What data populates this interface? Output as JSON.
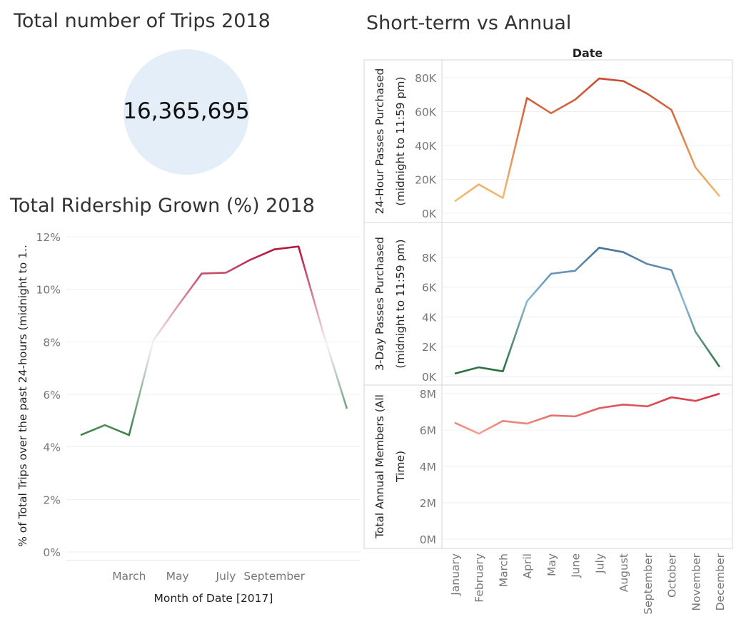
{
  "kpi": {
    "title": "Total number of Trips 2018",
    "value": "16,365,695",
    "circle_color": "#e3eef8"
  },
  "growth": {
    "title": "Total Ridership Grown (%) 2018"
  },
  "short_term": {
    "title": "Short-term vs Annual"
  },
  "chart_data": [
    {
      "type": "line",
      "title": "Total Ridership Grown (%) 2018",
      "xlabel": "Month of Date [2017]",
      "ylabel": "% of Total Trips over the past 24-hours (midnight to 1..",
      "x_tick_labels": [
        "March",
        "May",
        "July",
        "September"
      ],
      "x": [
        1,
        2,
        3,
        4,
        5,
        6,
        7,
        8,
        9,
        10,
        11,
        12
      ],
      "values": [
        4.45,
        4.83,
        4.45,
        8.05,
        9.35,
        10.6,
        10.63,
        11.12,
        11.52,
        11.63,
        8.4,
        5.45
      ],
      "ylim": [
        0,
        12
      ],
      "y_ticks": [
        "0%",
        "2%",
        "4%",
        "6%",
        "8%",
        "10%",
        "12%"
      ],
      "gradient": [
        "#b4163d",
        "#f7f3f3",
        "#2e7a3f"
      ],
      "grid": true
    },
    {
      "type": "line",
      "title": "Short-term vs Annual",
      "header": "Date",
      "categories": [
        "January",
        "February",
        "March",
        "April",
        "May",
        "June",
        "July",
        "August",
        "September",
        "October",
        "November",
        "December"
      ],
      "series": [
        {
          "ylabel": "24-Hour Passes Purchased (midnight to 11:59 pm)",
          "values": [
            7000,
            17000,
            9000,
            68000,
            59000,
            67000,
            79500,
            78000,
            70500,
            61000,
            27000,
            10000
          ],
          "ylim": [
            0,
            85000
          ],
          "y_ticks": [
            "0K",
            "20K",
            "40K",
            "60K",
            "80K"
          ],
          "gradient": [
            "#f6c272",
            "#c5412a"
          ]
        },
        {
          "ylabel": "3-Day Passes Purchased (midnight to 11:59 pm)",
          "values": [
            200,
            620,
            350,
            5050,
            6900,
            7100,
            8650,
            8350,
            7550,
            7150,
            3000,
            650
          ],
          "ylim": [
            0,
            9000
          ],
          "y_ticks": [
            "0K",
            "2K",
            "4K",
            "6K",
            "8K"
          ],
          "gradient": [
            "#2b6e3a",
            "#8db9d6",
            "#2e5e8c"
          ]
        },
        {
          "ylabel": "Total Annual Members (All Time)",
          "values": [
            6400000,
            5800000,
            6500000,
            6350000,
            6800000,
            6750000,
            7200000,
            7400000,
            7300000,
            7800000,
            7600000,
            8000000
          ],
          "ylim": [
            0,
            8000000
          ],
          "y_ticks": [
            "0M",
            "2M",
            "4M",
            "6M",
            "8M"
          ],
          "gradient": [
            "#f5a18d",
            "#d6313e"
          ]
        }
      ],
      "grid": true
    }
  ]
}
